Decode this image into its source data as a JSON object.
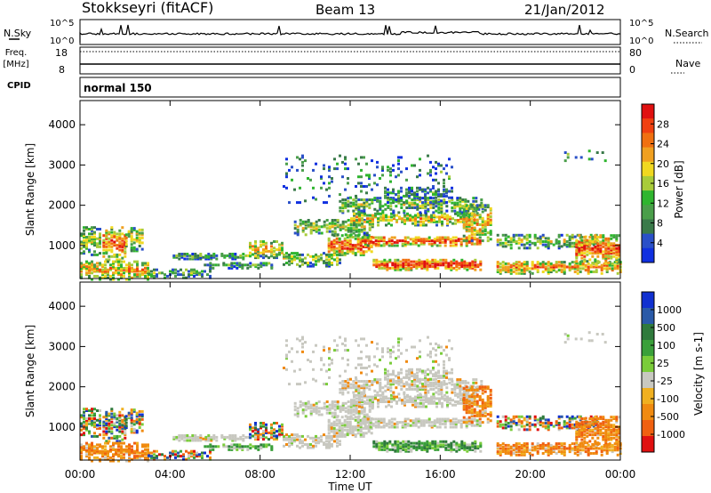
{
  "header": {
    "station": "Stokkseyri (fitACF)",
    "beam": "Beam 13",
    "date": "21/Jan/2012"
  },
  "side_labels": {
    "nsky": "N.Sky",
    "freq_line1": "Freq.",
    "freq_line2": "[MHz]",
    "cpid": "CPID",
    "nsearch": "N.Search",
    "nave": "Nave"
  },
  "strip_ticks": {
    "nsky_top": "10^5",
    "nsky_bottom": "10^0",
    "freq_top": "18",
    "freq_bottom": "8",
    "nave_top": "80",
    "nave_bottom": "0"
  },
  "cpid_text": "normal 150",
  "chart_data": [
    {
      "type": "heatmap",
      "name": "power",
      "ylabel": "Slant Range [km]",
      "xlabel": "Time UT",
      "x_ticks": [
        "00:00",
        "04:00",
        "08:00",
        "12:00",
        "16:00",
        "20:00",
        "00:00"
      ],
      "xlim_hours": [
        0,
        24
      ],
      "y_ticks": [
        1000,
        2000,
        3000,
        4000
      ],
      "ylim": [
        180,
        4600
      ],
      "colorbar": {
        "label": "Power [dB]",
        "ticks": [
          "4",
          "8",
          "12",
          "16",
          "20",
          "24",
          "28"
        ],
        "colors": [
          "#1030e0",
          "#2a50c8",
          "#3a7a4a",
          "#4a9e4a",
          "#2fb52f",
          "#a8cc3a",
          "#f0d820",
          "#f0a020",
          "#f07010",
          "#f04010",
          "#e01010"
        ]
      }
    },
    {
      "type": "heatmap",
      "name": "velocity",
      "ylabel": "Slant Range [km]",
      "xlabel": "Time UT",
      "x_ticks": [
        "00:00",
        "04:00",
        "08:00",
        "12:00",
        "16:00",
        "20:00",
        "00:00"
      ],
      "xlim_hours": [
        0,
        24
      ],
      "y_ticks": [
        1000,
        2000,
        3000,
        4000
      ],
      "ylim": [
        180,
        4600
      ],
      "colorbar": {
        "label": "Velocity [m s-1]",
        "ticks": [
          "1000",
          "500",
          "100",
          "25",
          "-25",
          "-100",
          "-500",
          "-1000"
        ],
        "colors": [
          "#1030d0",
          "#2a5aa8",
          "#2f7a3c",
          "#3aa03a",
          "#7acc3a",
          "#c8c8c0",
          "#f0b020",
          "#f08a10",
          "#f06010",
          "#e01010"
        ]
      }
    }
  ],
  "time_axis_label": "Time UT"
}
